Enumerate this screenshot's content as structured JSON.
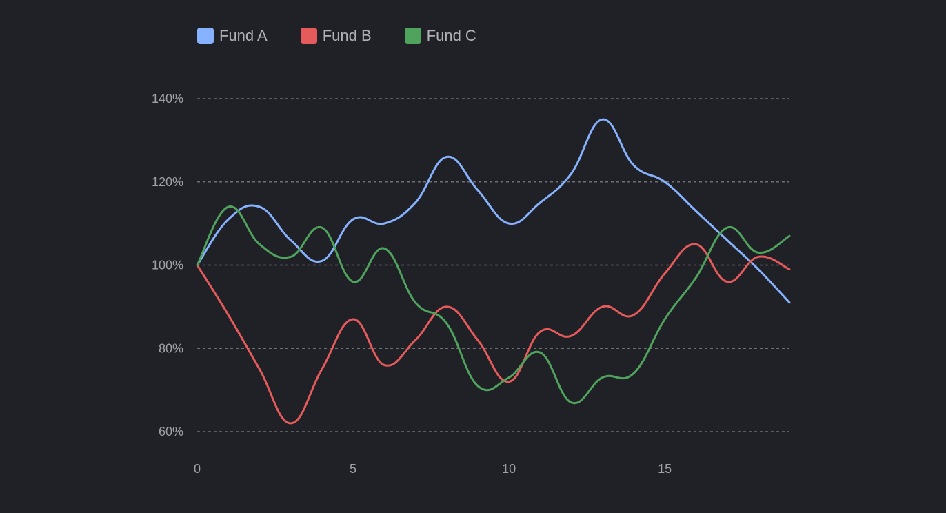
{
  "chart_data": {
    "type": "line",
    "x": [
      0,
      1,
      2,
      3,
      4,
      5,
      6,
      7,
      8,
      9,
      10,
      11,
      12,
      13,
      14,
      15,
      16,
      17,
      18,
      19
    ],
    "series": [
      {
        "name": "Fund A",
        "color": "#86b2ff",
        "values": [
          100,
          111,
          114,
          106,
          101,
          111,
          110,
          115,
          126,
          118,
          110,
          115,
          122,
          135,
          124,
          120,
          113,
          106,
          99,
          91
        ]
      },
      {
        "name": "Fund B",
        "color": "#e55a5a",
        "values": [
          100,
          88,
          75,
          62,
          75,
          87,
          76,
          82,
          90,
          82,
          72,
          84,
          83,
          90,
          88,
          98,
          105,
          96,
          102,
          99
        ]
      },
      {
        "name": "Fund C",
        "color": "#4fa35c",
        "values": [
          100,
          114,
          105,
          102,
          109,
          96,
          104,
          91,
          86,
          71,
          73,
          79,
          67,
          73,
          74,
          87,
          97,
          109,
          103,
          107
        ]
      }
    ],
    "x_ticks": [
      0,
      5,
      10,
      15
    ],
    "y_ticks": [
      60,
      80,
      100,
      120,
      140
    ],
    "y_tick_labels": [
      "60%",
      "80%",
      "100%",
      "120%",
      "140%"
    ],
    "x_tick_labels": [
      "0",
      "5",
      "10",
      "15"
    ],
    "xlim": [
      0,
      19
    ],
    "ylim": [
      60,
      140
    ],
    "grid": "horizontal-dashed",
    "legend": "top-left"
  }
}
